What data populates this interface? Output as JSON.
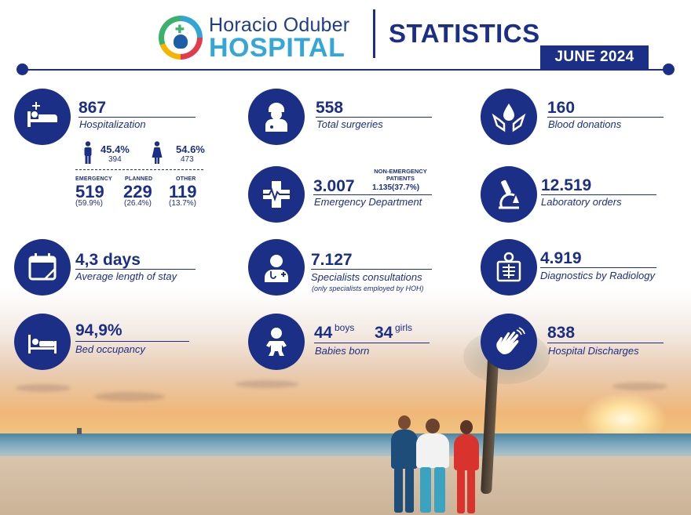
{
  "header": {
    "brand_line1": "Horacio Oduber",
    "brand_line2": "HOSPITAL",
    "title": "STATISTICS",
    "period": "JUNE 2024"
  },
  "colors": {
    "primary": "#1c2f86",
    "brand_light": "#34a7d8"
  },
  "hospitalization": {
    "value": "867",
    "label": "Hospitalization",
    "icon": "hospital-bed-icon",
    "male_pct": "45.4%",
    "male_count": "394",
    "female_pct": "54.6%",
    "female_count": "473",
    "categories": [
      {
        "label": "EMERGENCY",
        "value": "519",
        "pct": "(59.9%)"
      },
      {
        "label": "PLANNED",
        "value": "229",
        "pct": "(26.4%)"
      },
      {
        "label": "OTHER",
        "value": "119",
        "pct": "(13.7%)"
      }
    ]
  },
  "surgeries": {
    "value": "558",
    "label": "Total surgeries",
    "icon": "surgeon-icon"
  },
  "blood": {
    "value": "160",
    "label": "Blood donations",
    "icon": "blood-drop-hands-icon"
  },
  "emergency": {
    "value": "3.007",
    "label": "Emergency Department",
    "icon": "heartbeat-cross-icon",
    "ne_label": "NON-EMERGENCY PATIENTS",
    "ne_value": "1.135(37.7%)"
  },
  "laboratory": {
    "value": "12.519",
    "label": "Laboratory orders",
    "icon": "microscope-icon"
  },
  "stay": {
    "value": "4,3 days",
    "label": "Average length of stay",
    "icon": "calendar-icon"
  },
  "specialists": {
    "value": "7.127",
    "label": "Specialists consultations",
    "note": "(only specialists employed by HOH)",
    "icon": "doctor-icon"
  },
  "radiology": {
    "value": "4.919",
    "label": "Diagnostics by Radiology",
    "icon": "xray-icon"
  },
  "occupancy": {
    "value": "94,9%",
    "label": "Bed occupancy",
    "icon": "bed-icon"
  },
  "babies": {
    "boys_value": "44",
    "boys_label": "boys",
    "girls_value": "34",
    "girls_label": "girls",
    "label": "Babies born",
    "icon": "baby-icon"
  },
  "discharges": {
    "value": "838",
    "label": "Hospital Discharges",
    "icon": "waving-hand-icon"
  }
}
